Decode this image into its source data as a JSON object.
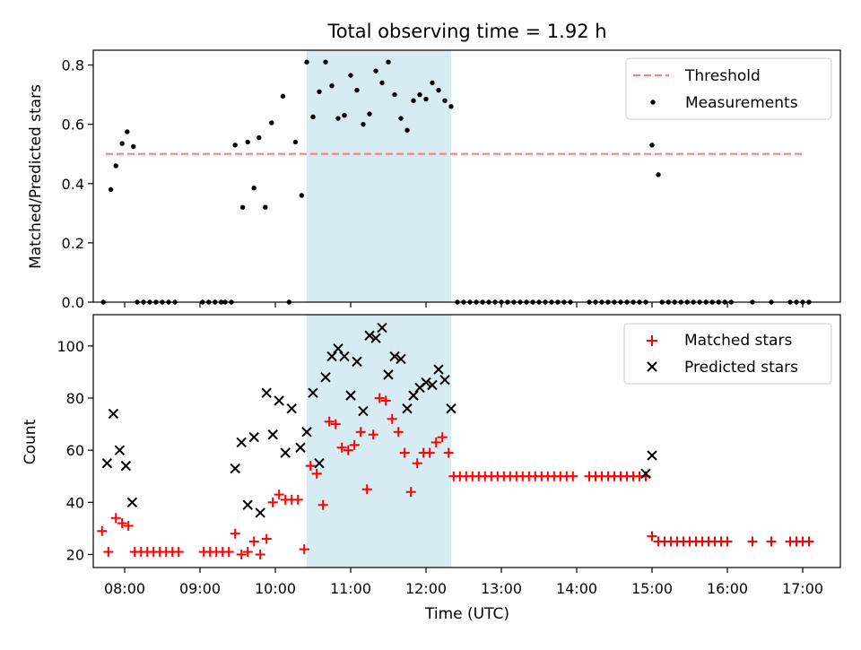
{
  "title": "Total observing time = 1.92 h",
  "colors": {
    "threshold": "#ff7f7f",
    "measurement": "#000000",
    "matched": "#ff0000",
    "predicted": "#000000",
    "highlight": "#add8e6"
  },
  "chart_data": [
    {
      "type": "scatter",
      "ylabel": "Matched/Predicted stars",
      "xlabel": "",
      "xlim": [
        "07:35",
        "17:30"
      ],
      "ylim": [
        0,
        0.85
      ],
      "yticks": [
        0.0,
        0.2,
        0.4,
        0.6,
        0.8
      ],
      "ytick_labels": [
        "0.0",
        "0.2",
        "0.4",
        "0.6",
        "0.8"
      ],
      "xticks": [
        "08:00",
        "09:00",
        "10:00",
        "11:00",
        "12:00",
        "13:00",
        "14:00",
        "15:00",
        "16:00",
        "17:00"
      ],
      "highlight_range": [
        "10:25",
        "12:20"
      ],
      "legend": {
        "placement": "top-right",
        "threshold_label": "Threshold",
        "measurements_label": "Measurements"
      },
      "threshold": {
        "x": [
          "07:45",
          "17:00"
        ],
        "y": 0.5
      },
      "series": [
        {
          "name": "Measurements",
          "points": [
            [
              "07:43",
              0.0
            ],
            [
              "07:49",
              0.38
            ],
            [
              "07:53",
              0.46
            ],
            [
              "07:58",
              0.535
            ],
            [
              "08:02",
              0.575
            ],
            [
              "08:07",
              0.525
            ],
            [
              "08:10",
              0.0
            ],
            [
              "08:15",
              0.0
            ],
            [
              "08:20",
              0.0
            ],
            [
              "08:25",
              0.0
            ],
            [
              "08:30",
              0.0
            ],
            [
              "08:35",
              0.0
            ],
            [
              "08:40",
              0.0
            ],
            [
              "09:02",
              0.0
            ],
            [
              "09:07",
              0.0
            ],
            [
              "09:12",
              0.0
            ],
            [
              "09:17",
              0.0
            ],
            [
              "09:20",
              0.0
            ],
            [
              "09:25",
              0.0
            ],
            [
              "09:28",
              0.53
            ],
            [
              "09:34",
              0.32
            ],
            [
              "09:38",
              0.54
            ],
            [
              "09:43",
              0.385
            ],
            [
              "09:47",
              0.555
            ],
            [
              "09:52",
              0.32
            ],
            [
              "09:57",
              0.605
            ],
            [
              "10:06",
              0.695
            ],
            [
              "10:11",
              0.0
            ],
            [
              "10:16",
              0.54
            ],
            [
              "10:21",
              0.36
            ],
            [
              "10:25",
              0.81
            ],
            [
              "10:30",
              0.625
            ],
            [
              "10:35",
              0.71
            ],
            [
              "10:40",
              0.81
            ],
            [
              "10:45",
              0.73
            ],
            [
              "10:50",
              0.62
            ],
            [
              "10:55",
              0.63
            ],
            [
              "11:00",
              0.765
            ],
            [
              "11:05",
              0.715
            ],
            [
              "11:10",
              0.6
            ],
            [
              "11:15",
              0.635
            ],
            [
              "11:20",
              0.78
            ],
            [
              "11:25",
              0.74
            ],
            [
              "11:30",
              0.81
            ],
            [
              "11:35",
              0.7
            ],
            [
              "11:40",
              0.62
            ],
            [
              "11:45",
              0.58
            ],
            [
              "11:50",
              0.68
            ],
            [
              "11:55",
              0.7
            ],
            [
              "12:00",
              0.685
            ],
            [
              "12:05",
              0.74
            ],
            [
              "12:10",
              0.715
            ],
            [
              "12:15",
              0.68
            ],
            [
              "12:20",
              0.66
            ],
            [
              "12:25",
              0.0
            ],
            [
              "12:30",
              0.0
            ],
            [
              "12:35",
              0.0
            ],
            [
              "12:40",
              0.0
            ],
            [
              "12:45",
              0.0
            ],
            [
              "12:50",
              0.0
            ],
            [
              "12:55",
              0.0
            ],
            [
              "13:00",
              0.0
            ],
            [
              "13:05",
              0.0
            ],
            [
              "13:10",
              0.0
            ],
            [
              "13:15",
              0.0
            ],
            [
              "13:20",
              0.0
            ],
            [
              "13:25",
              0.0
            ],
            [
              "13:30",
              0.0
            ],
            [
              "13:35",
              0.0
            ],
            [
              "13:40",
              0.0
            ],
            [
              "13:45",
              0.0
            ],
            [
              "13:50",
              0.0
            ],
            [
              "13:55",
              0.0
            ],
            [
              "14:10",
              0.0
            ],
            [
              "14:15",
              0.0
            ],
            [
              "14:20",
              0.0
            ],
            [
              "14:25",
              0.0
            ],
            [
              "14:30",
              0.0
            ],
            [
              "14:35",
              0.0
            ],
            [
              "14:40",
              0.0
            ],
            [
              "14:45",
              0.0
            ],
            [
              "14:50",
              0.0
            ],
            [
              "14:55",
              0.0
            ],
            [
              "15:00",
              0.53
            ],
            [
              "15:05",
              0.43
            ],
            [
              "15:08",
              0.0
            ],
            [
              "15:13",
              0.0
            ],
            [
              "15:18",
              0.0
            ],
            [
              "15:23",
              0.0
            ],
            [
              "15:28",
              0.0
            ],
            [
              "15:33",
              0.0
            ],
            [
              "15:38",
              0.0
            ],
            [
              "15:43",
              0.0
            ],
            [
              "15:48",
              0.0
            ],
            [
              "15:53",
              0.0
            ],
            [
              "15:58",
              0.0
            ],
            [
              "16:03",
              0.0
            ],
            [
              "16:20",
              0.0
            ],
            [
              "16:35",
              0.0
            ],
            [
              "16:50",
              0.0
            ],
            [
              "16:55",
              0.0
            ],
            [
              "17:00",
              0.0
            ],
            [
              "17:05",
              0.0
            ]
          ]
        }
      ]
    },
    {
      "type": "scatter",
      "ylabel": "Count",
      "xlabel": "Time (UTC)",
      "xlim": [
        "07:35",
        "17:30"
      ],
      "ylim": [
        15,
        112
      ],
      "yticks": [
        20,
        40,
        60,
        80,
        100
      ],
      "ytick_labels": [
        "20",
        "40",
        "60",
        "80",
        "100"
      ],
      "xticks": [
        "08:00",
        "09:00",
        "10:00",
        "11:00",
        "12:00",
        "13:00",
        "14:00",
        "15:00",
        "16:00",
        "17:00"
      ],
      "xtick_labels": [
        "08:00",
        "09:00",
        "10:00",
        "11:00",
        "12:00",
        "13:00",
        "14:00",
        "15:00",
        "16:00",
        "17:00"
      ],
      "highlight_range": [
        "10:25",
        "12:20"
      ],
      "legend": {
        "placement": "top-right",
        "matched_label": "Matched stars",
        "predicted_label": "Predicted stars"
      },
      "series": [
        {
          "name": "Matched stars",
          "points": [
            [
              "07:42",
              29
            ],
            [
              "07:47",
              21
            ],
            [
              "07:53",
              34
            ],
            [
              "07:58",
              32
            ],
            [
              "08:03",
              31
            ],
            [
              "08:08",
              21
            ],
            [
              "08:13",
              21
            ],
            [
              "08:18",
              21
            ],
            [
              "08:23",
              21
            ],
            [
              "08:28",
              21
            ],
            [
              "08:33",
              21
            ],
            [
              "08:38",
              21
            ],
            [
              "08:43",
              21
            ],
            [
              "09:03",
              21
            ],
            [
              "09:08",
              21
            ],
            [
              "09:13",
              21
            ],
            [
              "09:18",
              21
            ],
            [
              "09:23",
              21
            ],
            [
              "09:28",
              28
            ],
            [
              "09:33",
              20
            ],
            [
              "09:38",
              21
            ],
            [
              "09:43",
              25
            ],
            [
              "09:48",
              20
            ],
            [
              "09:53",
              26
            ],
            [
              "09:58",
              40
            ],
            [
              "10:03",
              43
            ],
            [
              "10:08",
              41
            ],
            [
              "10:13",
              41
            ],
            [
              "10:18",
              41
            ],
            [
              "10:23",
              22
            ],
            [
              "10:28",
              54
            ],
            [
              "10:33",
              51
            ],
            [
              "10:38",
              39
            ],
            [
              "10:43",
              71
            ],
            [
              "10:48",
              70
            ],
            [
              "10:53",
              61
            ],
            [
              "10:58",
              60
            ],
            [
              "11:03",
              62
            ],
            [
              "11:08",
              67
            ],
            [
              "11:13",
              45
            ],
            [
              "11:18",
              66
            ],
            [
              "11:23",
              80
            ],
            [
              "11:28",
              79
            ],
            [
              "11:33",
              72
            ],
            [
              "11:38",
              67
            ],
            [
              "11:43",
              59
            ],
            [
              "11:48",
              44
            ],
            [
              "11:53",
              55
            ],
            [
              "11:58",
              59
            ],
            [
              "12:03",
              59
            ],
            [
              "12:08",
              63
            ],
            [
              "12:13",
              65
            ],
            [
              "12:18",
              59
            ],
            [
              "12:22",
              50
            ],
            [
              "12:27",
              50
            ],
            [
              "12:32",
              50
            ],
            [
              "12:37",
              50
            ],
            [
              "12:42",
              50
            ],
            [
              "12:47",
              50
            ],
            [
              "12:52",
              50
            ],
            [
              "12:57",
              50
            ],
            [
              "13:02",
              50
            ],
            [
              "13:07",
              50
            ],
            [
              "13:12",
              50
            ],
            [
              "13:17",
              50
            ],
            [
              "13:22",
              50
            ],
            [
              "13:27",
              50
            ],
            [
              "13:32",
              50
            ],
            [
              "13:37",
              50
            ],
            [
              "13:42",
              50
            ],
            [
              "13:47",
              50
            ],
            [
              "13:52",
              50
            ],
            [
              "13:57",
              50
            ],
            [
              "14:10",
              50
            ],
            [
              "14:15",
              50
            ],
            [
              "14:20",
              50
            ],
            [
              "14:25",
              50
            ],
            [
              "14:30",
              50
            ],
            [
              "14:35",
              50
            ],
            [
              "14:40",
              50
            ],
            [
              "14:45",
              50
            ],
            [
              "14:50",
              50
            ],
            [
              "14:55",
              50
            ],
            [
              "15:00",
              27
            ],
            [
              "15:05",
              25
            ],
            [
              "15:10",
              25
            ],
            [
              "15:15",
              25
            ],
            [
              "15:20",
              25
            ],
            [
              "15:25",
              25
            ],
            [
              "15:30",
              25
            ],
            [
              "15:35",
              25
            ],
            [
              "15:40",
              25
            ],
            [
              "15:45",
              25
            ],
            [
              "15:50",
              25
            ],
            [
              "15:55",
              25
            ],
            [
              "16:00",
              25
            ],
            [
              "16:20",
              25
            ],
            [
              "16:35",
              25
            ],
            [
              "16:50",
              25
            ],
            [
              "16:55",
              25
            ],
            [
              "17:00",
              25
            ],
            [
              "17:05",
              25
            ]
          ]
        },
        {
          "name": "Predicted stars",
          "points": [
            [
              "07:46",
              55
            ],
            [
              "07:51",
              74
            ],
            [
              "07:56",
              60
            ],
            [
              "08:01",
              54
            ],
            [
              "08:06",
              40
            ],
            [
              "09:28",
              53
            ],
            [
              "09:33",
              63
            ],
            [
              "09:38",
              39
            ],
            [
              "09:43",
              65
            ],
            [
              "09:48",
              36
            ],
            [
              "09:53",
              82
            ],
            [
              "09:58",
              66
            ],
            [
              "10:03",
              79
            ],
            [
              "10:08",
              59
            ],
            [
              "10:13",
              76
            ],
            [
              "10:20",
              61
            ],
            [
              "10:25",
              67
            ],
            [
              "10:30",
              82
            ],
            [
              "10:35",
              55
            ],
            [
              "10:40",
              88
            ],
            [
              "10:45",
              96
            ],
            [
              "10:50",
              99
            ],
            [
              "10:55",
              96
            ],
            [
              "11:00",
              81
            ],
            [
              "11:05",
              94
            ],
            [
              "11:10",
              75
            ],
            [
              "11:15",
              104
            ],
            [
              "11:20",
              103
            ],
            [
              "11:25",
              107
            ],
            [
              "11:30",
              89
            ],
            [
              "11:35",
              96
            ],
            [
              "11:40",
              95
            ],
            [
              "11:45",
              76
            ],
            [
              "11:50",
              81
            ],
            [
              "11:55",
              84
            ],
            [
              "12:00",
              86
            ],
            [
              "12:05",
              85
            ],
            [
              "12:10",
              91
            ],
            [
              "12:15",
              87
            ],
            [
              "12:20",
              76
            ],
            [
              "14:55",
              51
            ],
            [
              "15:00",
              58
            ]
          ]
        }
      ]
    }
  ]
}
